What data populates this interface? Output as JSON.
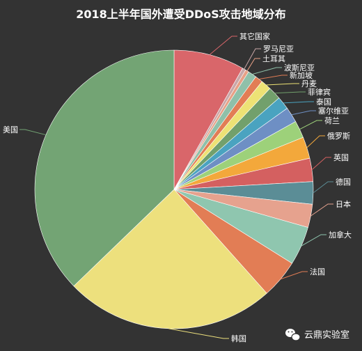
{
  "chart_data": {
    "type": "pie",
    "title": "2018上半年国外遭受DDoS攻击地域分布",
    "slices": [
      {
        "label": "其它国家",
        "value": 8.2,
        "color": "#d9666a"
      },
      {
        "label": "罗马尼亚",
        "value": 0.4,
        "color": "#c9a7a8"
      },
      {
        "label": "土耳其",
        "value": 0.4,
        "color": "#e7a086"
      },
      {
        "label": "波斯尼亚",
        "value": 1.0,
        "color": "#8fc0a9"
      },
      {
        "label": "新加坡",
        "value": 0.9,
        "color": "#e27d55"
      },
      {
        "label": "丹麦",
        "value": 1.2,
        "color": "#ede275"
      },
      {
        "label": "菲律宾",
        "value": 1.5,
        "color": "#72a06c"
      },
      {
        "label": "泰国",
        "value": 1.5,
        "color": "#4aa3c0"
      },
      {
        "label": "塞尔维亚",
        "value": 1.8,
        "color": "#6e8fc4"
      },
      {
        "label": "荷兰",
        "value": 2.0,
        "color": "#9dd17a"
      },
      {
        "label": "俄罗斯",
        "value": 2.5,
        "color": "#f3a83b"
      },
      {
        "label": "英国",
        "value": 2.7,
        "color": "#d46060"
      },
      {
        "label": "德国",
        "value": 2.6,
        "color": "#5b8d96"
      },
      {
        "label": "日本",
        "value": 2.7,
        "color": "#e6a28e"
      },
      {
        "label": "加拿大",
        "value": 4.5,
        "color": "#8fc6af"
      },
      {
        "label": "法国",
        "value": 4.5,
        "color": "#e27d55"
      },
      {
        "label": "韩国",
        "value": 24.4,
        "color": "#ede07d"
      },
      {
        "label": "美国",
        "value": 37.2,
        "color": "#73a474"
      }
    ]
  },
  "watermark": {
    "text": "云鼎实验室",
    "icon": "wechat-icon"
  }
}
